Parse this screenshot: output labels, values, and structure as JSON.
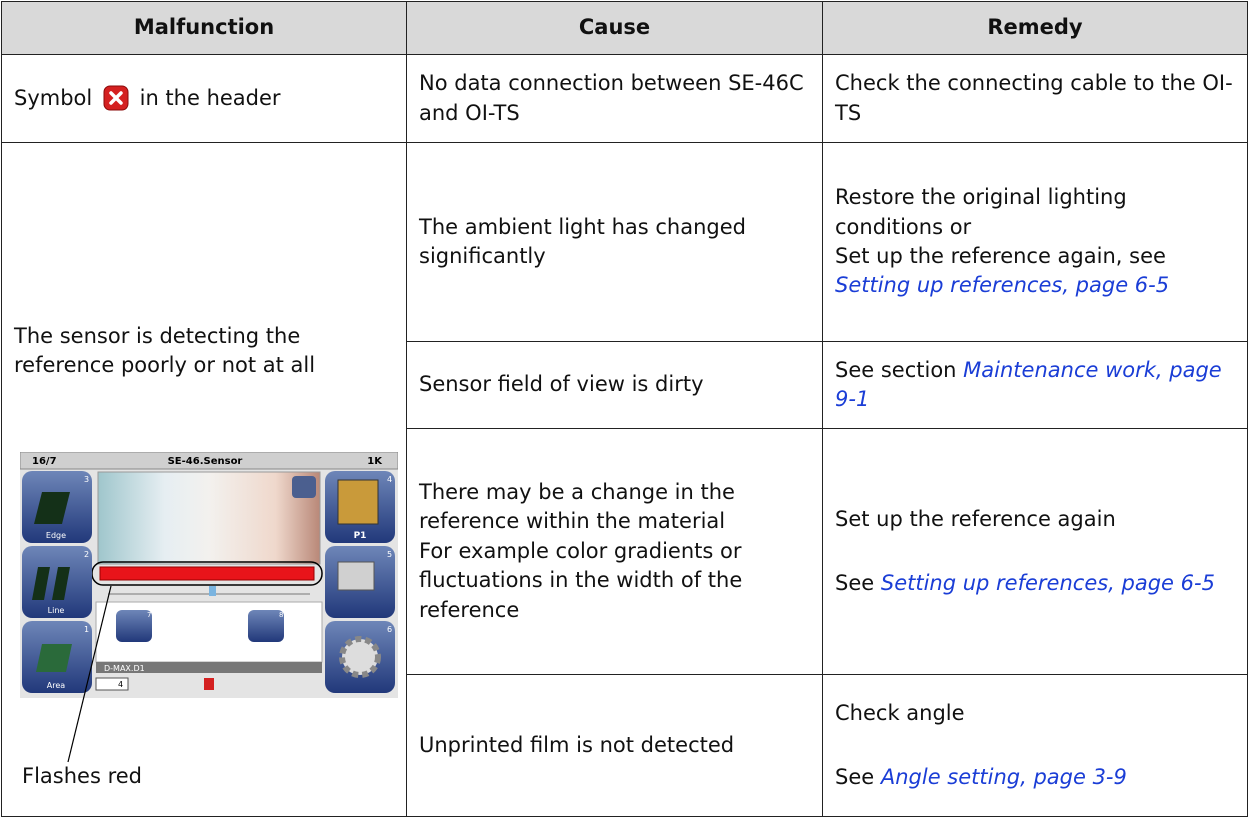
{
  "table": {
    "headers": [
      "Malfunction",
      "Cause",
      "Remedy"
    ],
    "connection_row": {
      "malfunction": {
        "before": "Symbol",
        "after": "in the header"
      },
      "cause": "No data connection between SE-46C and OI-TS",
      "remedy": "Check the connecting cable to the OI-TS"
    },
    "detection_group": {
      "malfunction": "The sensor is detecting the reference poorly or not at all",
      "callout": "Flashes red",
      "screen": {
        "counter": "16/7",
        "title": "SE-46.Sensor",
        "mode": "1K",
        "left_buttons": [
          {
            "label": "Edge",
            "number": "3"
          },
          {
            "label": "Line",
            "number": "2"
          },
          {
            "label": "Area",
            "number": "1"
          }
        ],
        "right_buttons": [
          {
            "label": "P1",
            "number": "4"
          },
          {
            "number": "5"
          },
          {
            "number": "6"
          }
        ],
        "arrows": [
          "7",
          "8"
        ],
        "status": "D-MAX.D1",
        "footer": "4"
      },
      "rows": [
        {
          "cause": "The ambient light has changed significantly",
          "remedy": [
            {
              "text": "Restore the original lighting conditions or"
            },
            {
              "text": "Set up the reference again, see",
              "link": "Setting up references, page 6-5"
            }
          ]
        },
        {
          "cause": "Sensor field of view is dirty",
          "remedy": [
            {
              "text": "See section",
              "link": "Maintenance work, page 9-1"
            }
          ]
        },
        {
          "cause": [
            "There may be a change in the reference within the material",
            "For example color gradients or fluctuations in the width of the reference"
          ],
          "remedy": [
            {
              "text": "Set up the reference again"
            },
            {
              "text": "See",
              "link": "Setting up references, page 6-5"
            }
          ]
        },
        {
          "cause": "Unprinted film is not detected",
          "remedy": [
            {
              "text": "Check angle"
            },
            {
              "text": "See",
              "link": "Angle setting, page 3-9"
            }
          ]
        }
      ]
    }
  }
}
